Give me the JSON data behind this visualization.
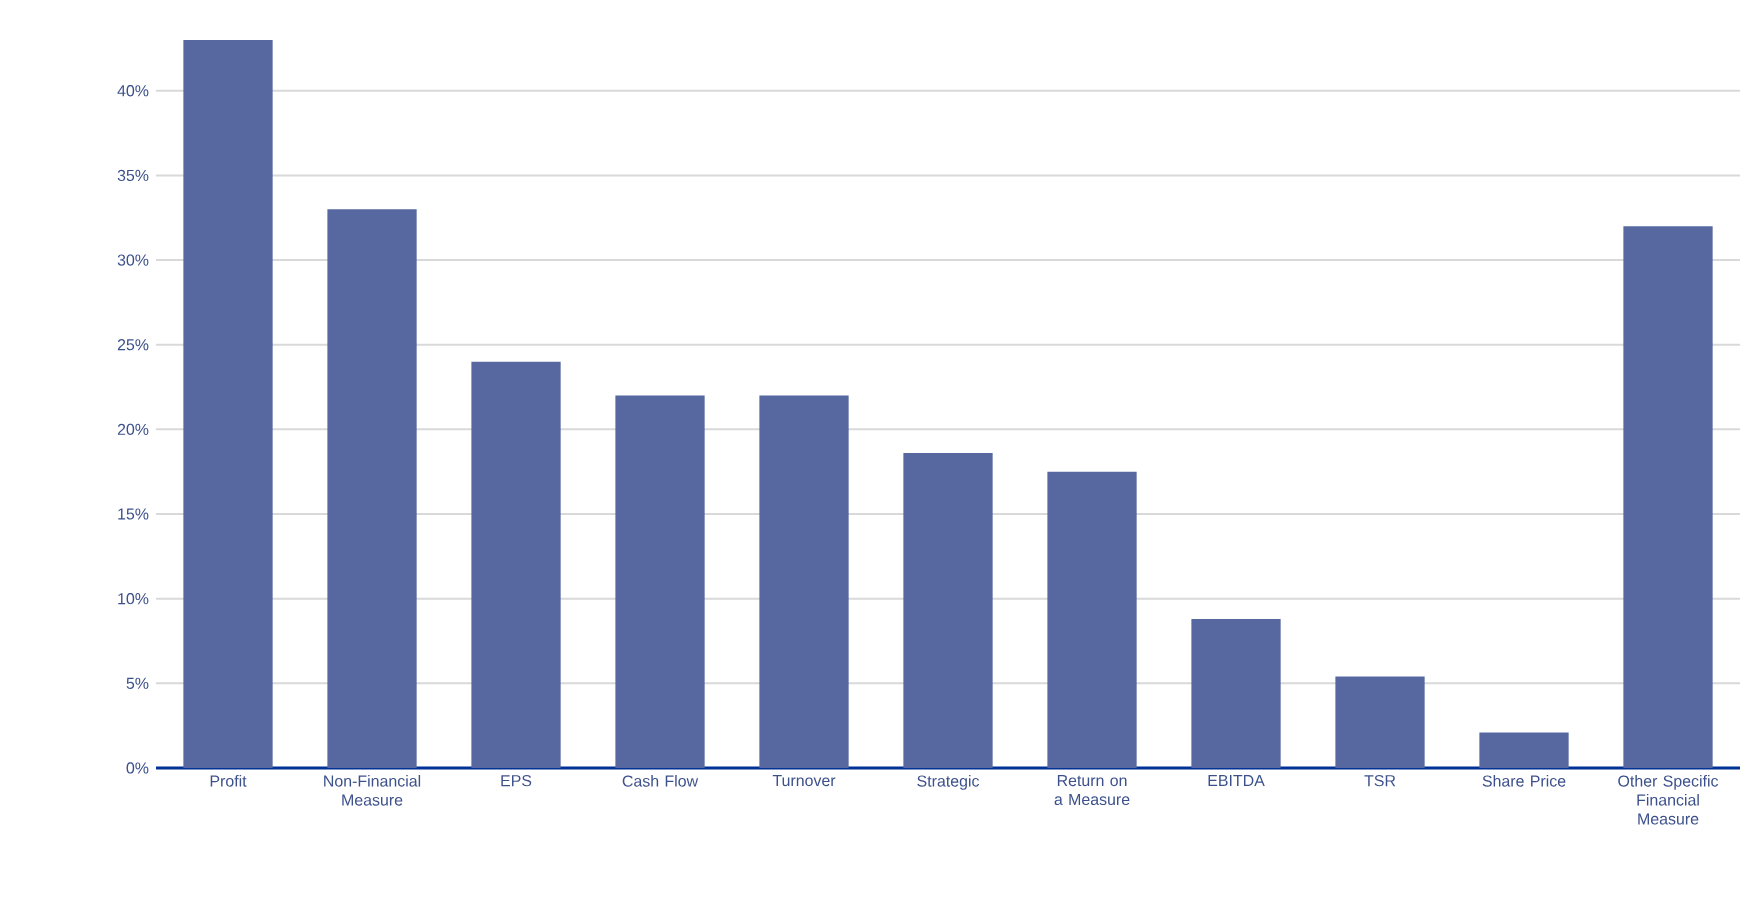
{
  "chart_data": {
    "type": "bar",
    "categories": [
      "Profit",
      "Non-Financial Measure",
      "EPS",
      "Cash Flow",
      "Turnover",
      "Strategic",
      "Return on a Measure",
      "EBITDA",
      "TSR",
      "Share Price",
      "Other Specific Financial Measure"
    ],
    "values": [
      43,
      33,
      24,
      22,
      22,
      18.6,
      17.5,
      8.8,
      5.4,
      2.1,
      32
    ],
    "color": "#56689f",
    "ylim": [
      0,
      43
    ],
    "yticks": [
      {
        "value": 0,
        "label": "0%"
      },
      {
        "value": 5,
        "label": "5%"
      },
      {
        "value": 10,
        "label": "10%"
      },
      {
        "value": 15,
        "label": "15%"
      },
      {
        "value": 20,
        "label": "20%"
      },
      {
        "value": 25,
        "label": "25%"
      },
      {
        "value": 30,
        "label": "30%"
      },
      {
        "value": 35,
        "label": "35%"
      },
      {
        "value": 40,
        "label": "40%"
      }
    ],
    "grid": "y"
  }
}
